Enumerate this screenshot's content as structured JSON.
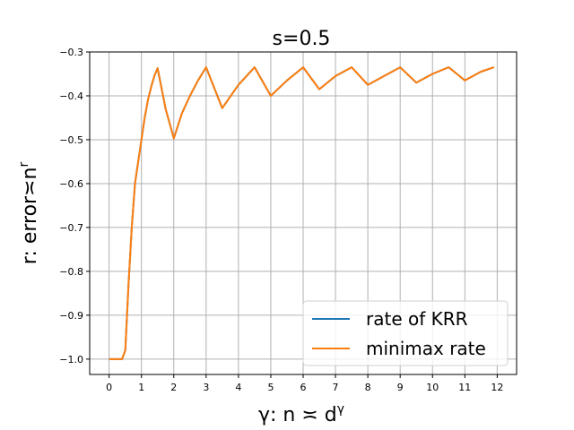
{
  "chart_data": {
    "type": "line",
    "title": "s=0.5",
    "xlabel": {
      "main": "γ: n ≍ d",
      "sup": "γ"
    },
    "ylabel": {
      "main": "r: error≍n",
      "sup": "r"
    },
    "xlim": [
      -0.6,
      12.6
    ],
    "ylim": [
      -1.035,
      -0.3
    ],
    "xticks": [
      0,
      1,
      2,
      3,
      4,
      5,
      6,
      7,
      8,
      9,
      10,
      11,
      12
    ],
    "yticks": [
      -1.0,
      -0.9,
      -0.8,
      -0.7,
      -0.6,
      -0.5,
      -0.4,
      -0.3
    ],
    "ytick_labels": [
      "−1.0",
      "−0.9",
      "−0.8",
      "−0.7",
      "−0.6",
      "−0.5",
      "−0.4",
      "−0.3"
    ],
    "grid": true,
    "legend": "lower-right",
    "series": [
      {
        "name": "rate of KRR",
        "color": "#1f77b4",
        "x": [
          0,
          0.4,
          0.5,
          0.6,
          0.7,
          0.8,
          0.9,
          1.0,
          1.1,
          1.2,
          1.3,
          1.4,
          1.5,
          1.75,
          2.0,
          2.25,
          2.5,
          2.75,
          3.0,
          3.5,
          4.0,
          4.5,
          5.0,
          5.5,
          6.0,
          6.5,
          7.0,
          7.5,
          8.0,
          8.5,
          9.0,
          9.5,
          10.0,
          10.5,
          11.0,
          11.5,
          11.9
        ],
        "y": [
          -1.0,
          -1.0,
          -0.98,
          -0.83,
          -0.7,
          -0.6,
          -0.55,
          -0.5,
          -0.45,
          -0.41,
          -0.38,
          -0.355,
          -0.337,
          -0.43,
          -0.497,
          -0.44,
          -0.4,
          -0.365,
          -0.335,
          -0.428,
          -0.375,
          -0.335,
          -0.4,
          -0.365,
          -0.335,
          -0.385,
          -0.355,
          -0.335,
          -0.375,
          -0.355,
          -0.335,
          -0.37,
          -0.35,
          -0.335,
          -0.365,
          -0.345,
          -0.335
        ]
      },
      {
        "name": "minimax rate",
        "color": "#ff7f0e",
        "x": [
          0,
          0.4,
          0.5,
          0.6,
          0.7,
          0.8,
          0.9,
          1.0,
          1.1,
          1.2,
          1.3,
          1.4,
          1.5,
          1.75,
          2.0,
          2.25,
          2.5,
          2.75,
          3.0,
          3.5,
          4.0,
          4.5,
          5.0,
          5.5,
          6.0,
          6.5,
          7.0,
          7.5,
          8.0,
          8.5,
          9.0,
          9.5,
          10.0,
          10.5,
          11.0,
          11.5,
          11.9
        ],
        "y": [
          -1.0,
          -1.0,
          -0.98,
          -0.83,
          -0.7,
          -0.6,
          -0.55,
          -0.5,
          -0.45,
          -0.41,
          -0.38,
          -0.355,
          -0.337,
          -0.43,
          -0.497,
          -0.44,
          -0.4,
          -0.365,
          -0.335,
          -0.428,
          -0.375,
          -0.335,
          -0.4,
          -0.365,
          -0.335,
          -0.385,
          -0.355,
          -0.335,
          -0.375,
          -0.355,
          -0.335,
          -0.37,
          -0.35,
          -0.335,
          -0.365,
          -0.345,
          -0.335
        ]
      }
    ]
  }
}
